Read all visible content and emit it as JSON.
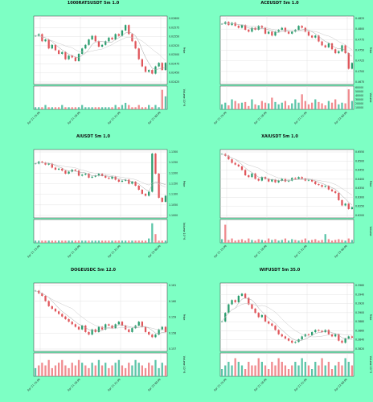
{
  "page": {
    "background": "#7dffc4"
  },
  "colors": {
    "up": "#2a9d6e",
    "down": "#e0565b",
    "vol_up": "#5cc5a8",
    "vol_down": "#f08b8f",
    "ma1": "#a0a0a0",
    "ma2": "#c8c8c8"
  },
  "chart_data": [
    {
      "type": "candlestick",
      "title": "1000RATSUSDT 5m 1.0",
      "ylabel": "Price",
      "vlabel": "Volume 10^6",
      "price_ticks": [
        "0.02600",
        "0.02575",
        "0.02550",
        "0.02525",
        "0.02500",
        "0.02475",
        "0.02450",
        "0.02425"
      ],
      "ylim": [
        0.0242,
        0.0261
      ],
      "x_ticks": [
        "Apr 21 15:00",
        "Apr 21 18:00",
        "Apr 21 21:00",
        "Apr 21 00:00"
      ],
      "closes": [
        0.02555,
        0.0256,
        0.0254,
        0.02545,
        0.0252,
        0.0253,
        0.02515,
        0.02505,
        0.0251,
        0.0249,
        0.025,
        0.02495,
        0.02485,
        0.02505,
        0.0252,
        0.0253,
        0.02545,
        0.02555,
        0.0254,
        0.02525,
        0.0253,
        0.0254,
        0.0255,
        0.02545,
        0.0256,
        0.02555,
        0.0257,
        0.02585,
        0.0256,
        0.0254,
        0.0252,
        0.0249,
        0.0247,
        0.02455,
        0.0246,
        0.0245,
        0.0247,
        0.0248,
        0.0246,
        0.0248
      ],
      "volumes": [
        1,
        1,
        1,
        2,
        1,
        1,
        1,
        1,
        2,
        1,
        1,
        1,
        1,
        1,
        2,
        1,
        1,
        1,
        1,
        1,
        1,
        1,
        1,
        1,
        2,
        1,
        2,
        3,
        2,
        1,
        1,
        2,
        1,
        1,
        2,
        1,
        2,
        1,
        9,
        6
      ],
      "vmax": 10
    },
    {
      "type": "candlestick",
      "title": "ACEUSDT 5m 1.0",
      "ylabel": "Price",
      "vlabel": "Volume",
      "price_ticks": [
        "0.4825",
        "0.4800",
        "0.4775",
        "0.4750",
        "0.4725",
        "0.4700",
        "0.4675"
      ],
      "vol_ticks": [
        "60000",
        "50000",
        "40000",
        "30000",
        "20000",
        "10000"
      ],
      "ylim": [
        0.466,
        0.4835
      ],
      "x_ticks": [
        "Apr 21 15:00",
        "Apr 21 18:00",
        "Apr 21 21:00",
        "Apr 22 00:00"
      ],
      "closes": [
        0.4815,
        0.482,
        0.4812,
        0.4818,
        0.481,
        0.4805,
        0.4812,
        0.48,
        0.4795,
        0.4805,
        0.48,
        0.481,
        0.4805,
        0.479,
        0.4795,
        0.4785,
        0.4795,
        0.48,
        0.4805,
        0.4795,
        0.479,
        0.4795,
        0.48,
        0.481,
        0.4805,
        0.4795,
        0.4785,
        0.478,
        0.4785,
        0.477,
        0.476,
        0.4755,
        0.4765,
        0.475,
        0.474,
        0.4745,
        0.476,
        0.474,
        0.47,
        0.4715
      ],
      "volumes": [
        15000,
        20000,
        12000,
        30000,
        25000,
        18000,
        20000,
        22000,
        10000,
        30000,
        15000,
        12000,
        25000,
        20000,
        18000,
        35000,
        22000,
        15000,
        20000,
        25000,
        12000,
        18000,
        30000,
        20000,
        45000,
        25000,
        15000,
        20000,
        30000,
        22000,
        18000,
        12000,
        25000,
        20000,
        30000,
        15000,
        20000,
        18000,
        60000,
        25000
      ],
      "vmax": 65000
    },
    {
      "type": "candlestick",
      "title": "AIUSDT 5m 1.0",
      "ylabel": "Price",
      "vlabel": "Volume 10^6",
      "price_ticks": [
        "1.1300",
        "1.1250",
        "1.1200",
        "1.1150",
        "1.1100",
        "1.1050",
        "1.1000"
      ],
      "ylim": [
        1.098,
        1.132
      ],
      "x_ticks": [
        "Apr 21 15:00",
        "Apr 21 18:00",
        "Apr 21 21:00",
        "Apr 22 00:00"
      ],
      "closes": [
        1.125,
        1.126,
        1.1255,
        1.1245,
        1.125,
        1.123,
        1.122,
        1.1225,
        1.1215,
        1.12,
        1.121,
        1.122,
        1.1215,
        1.119,
        1.1195,
        1.12,
        1.118,
        1.1185,
        1.119,
        1.12,
        1.119,
        1.118,
        1.1175,
        1.1185,
        1.117,
        1.116,
        1.1165,
        1.117,
        1.115,
        1.116,
        1.114,
        1.112,
        1.11,
        1.109,
        1.111,
        1.13,
        1.12,
        1.108,
        1.106,
        1.109
      ],
      "volumes": [
        1,
        1,
        1,
        1,
        1,
        1,
        1,
        1,
        1,
        1,
        1,
        1,
        1,
        1,
        1,
        1,
        1,
        1,
        1,
        1,
        1,
        1,
        1,
        1,
        1,
        1,
        1,
        1,
        1,
        1,
        1,
        1,
        1,
        1,
        2,
        9,
        4,
        1,
        1,
        1
      ],
      "vmax": 10
    },
    {
      "type": "candlestick",
      "title": "XAIUSDT 5m 1.0",
      "ylabel": "Price",
      "vlabel": "Volume",
      "price_ticks": [
        "0.6550",
        "0.6500",
        "0.6450",
        "0.6400",
        "0.6350",
        "0.6300",
        "0.6250",
        "0.6200"
      ],
      "ylim": [
        0.618,
        0.6565
      ],
      "x_ticks": [
        "Apr 21 15:00",
        "Apr 21 18:00",
        "Apr 21 21:00",
        "Apr 22 00:00"
      ],
      "closes": [
        0.654,
        0.653,
        0.651,
        0.649,
        0.648,
        0.647,
        0.645,
        0.642,
        0.641,
        0.643,
        0.64,
        0.639,
        0.641,
        0.64,
        0.6385,
        0.6395,
        0.638,
        0.639,
        0.64,
        0.6385,
        0.639,
        0.6405,
        0.64,
        0.641,
        0.64,
        0.639,
        0.6395,
        0.6385,
        0.637,
        0.6365,
        0.6355,
        0.636,
        0.634,
        0.633,
        0.632,
        0.628,
        0.625,
        0.626,
        0.623,
        0.624
      ],
      "volumes": [
        5,
        25,
        4,
        6,
        3,
        4,
        5,
        3,
        6,
        4,
        3,
        5,
        4,
        3,
        6,
        4,
        5,
        3,
        4,
        6,
        3,
        5,
        4,
        3,
        4,
        6,
        3,
        4,
        5,
        3,
        4,
        12,
        5,
        3,
        4,
        5,
        4,
        3,
        6,
        4
      ],
      "vmax": 30
    },
    {
      "type": "candlestick",
      "title": "DOGEUSDC 5m 12.0",
      "ylabel": "Price",
      "vlabel": "Volume 10^6",
      "price_ticks": [
        "0.161",
        "0.160",
        "0.159",
        "0.158",
        "0.157"
      ],
      "ylim": [
        0.1565,
        0.1618
      ],
      "x_ticks": [
        "Apr 21 15:00",
        "Apr 21 18:00",
        "Apr 21 21:00",
        "Apr 22 00:00"
      ],
      "closes": [
        0.1612,
        0.161,
        0.1608,
        0.1604,
        0.16,
        0.1598,
        0.1596,
        0.1594,
        0.1592,
        0.159,
        0.1588,
        0.1586,
        0.1584,
        0.1582,
        0.1585,
        0.158,
        0.1578,
        0.1582,
        0.158,
        0.1584,
        0.1582,
        0.1586,
        0.1585,
        0.1583,
        0.1586,
        0.1588,
        0.1585,
        0.1582,
        0.158,
        0.1583,
        0.1585,
        0.1588,
        0.1584,
        0.158,
        0.1578,
        0.1576,
        0.1578,
        0.1582,
        0.1584,
        0.158
      ],
      "volumes": [
        3,
        4,
        5,
        4,
        6,
        3,
        4,
        5,
        6,
        4,
        3,
        5,
        4,
        6,
        5,
        4,
        3,
        5,
        4,
        6,
        4,
        5,
        3,
        4,
        5,
        6,
        4,
        3,
        5,
        4,
        6,
        5,
        4,
        3,
        5,
        4,
        6,
        3,
        5,
        4
      ],
      "vmax": 8
    },
    {
      "type": "candlestick",
      "title": "WIFUSDT 5m 35.0",
      "ylabel": "Price",
      "vlabel": "Volume 10^5",
      "price_ticks": [
        "0.3960",
        "0.3940",
        "0.3920",
        "0.3900",
        "0.3880",
        "0.3860",
        "0.3840",
        "0.3820"
      ],
      "ylim": [
        0.381,
        0.397
      ],
      "x_ticks": [
        "Apr 21 15:00",
        "Apr 21 18:00",
        "Apr 21 21:00",
        "Apr 22 00:00"
      ],
      "closes": [
        0.388,
        0.39,
        0.392,
        0.393,
        0.3925,
        0.394,
        0.3945,
        0.3935,
        0.392,
        0.391,
        0.39,
        0.389,
        0.3895,
        0.388,
        0.3875,
        0.387,
        0.386,
        0.385,
        0.3845,
        0.384,
        0.3835,
        0.383,
        0.3832,
        0.3838,
        0.3845,
        0.385,
        0.3848,
        0.3855,
        0.386,
        0.3858,
        0.3855,
        0.386,
        0.385,
        0.3845,
        0.385,
        0.3835,
        0.383,
        0.384,
        0.3845,
        0.3842
      ],
      "volumes": [
        2,
        3,
        4,
        3,
        5,
        4,
        3,
        2,
        4,
        3,
        3,
        5,
        4,
        3,
        2,
        4,
        3,
        5,
        4,
        3,
        2,
        3,
        4,
        3,
        5,
        4,
        3,
        2,
        4,
        3,
        5,
        3,
        4,
        2,
        3,
        4,
        3,
        5,
        4,
        3
      ],
      "vmax": 6
    }
  ]
}
